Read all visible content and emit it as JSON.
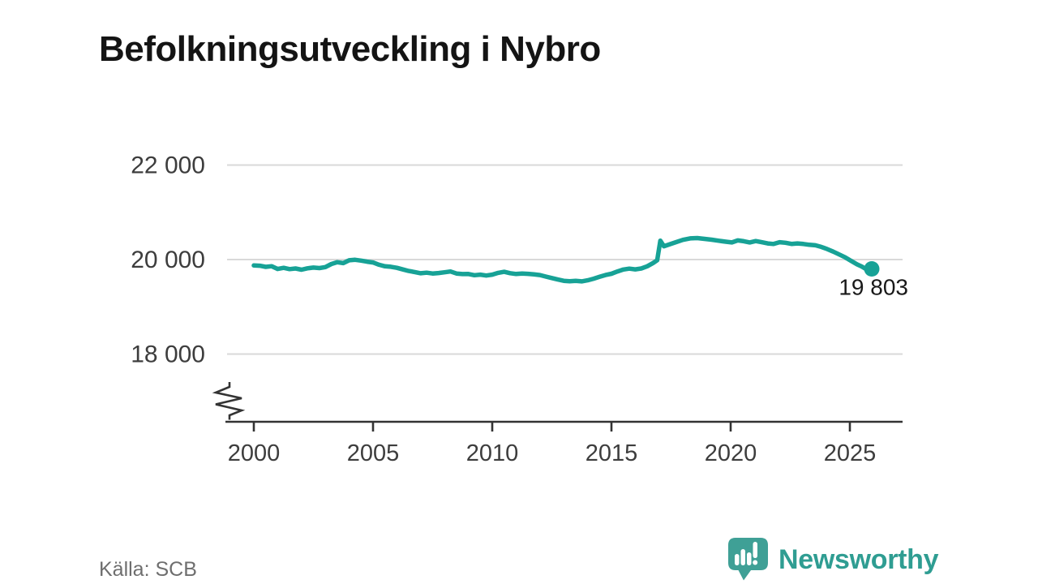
{
  "title": "Befolkningsutveckling i Nybro",
  "footer": {
    "source": "Källa: SCB",
    "brand_name": "Newsworthy"
  },
  "colors": {
    "accent_line": "#17a296",
    "logo_bubble": "#3fa096",
    "logo_text": "#2f9d92",
    "gridline": "#d9d9d9",
    "axis": "#333333",
    "tick_label": "#3d3d3d",
    "annotation": "#191919",
    "source_text": "#6e6e6e",
    "title_text": "#141414",
    "background": "#ffffff"
  },
  "chart_data": {
    "type": "line",
    "title": "Befolkningsutveckling i Nybro",
    "xlabel": "",
    "ylabel": "",
    "legend_position": "none",
    "grid": "horizontal",
    "axis_break_bottom_left": true,
    "x_ticks": [
      2000,
      2005,
      2010,
      2015,
      2020,
      2025
    ],
    "x_range_visible": [
      1998.9,
      2027.2
    ],
    "y_gridlines": [
      {
        "value": 22000,
        "label": "22 000"
      },
      {
        "value": 20000,
        "label": "20 000"
      },
      {
        "value": 18000,
        "label": "18 000"
      }
    ],
    "end_label": "19 803",
    "latest_value": 19803,
    "series": [
      {
        "name": "Befolkning i Nybro",
        "points": [
          [
            2000.0,
            19875
          ],
          [
            2000.25,
            19870
          ],
          [
            2000.5,
            19845
          ],
          [
            2000.75,
            19860
          ],
          [
            2001.0,
            19800
          ],
          [
            2001.25,
            19825
          ],
          [
            2001.5,
            19798
          ],
          [
            2001.75,
            19812
          ],
          [
            2002.0,
            19785
          ],
          [
            2002.25,
            19815
          ],
          [
            2002.5,
            19830
          ],
          [
            2002.75,
            19820
          ],
          [
            2003.0,
            19840
          ],
          [
            2003.25,
            19905
          ],
          [
            2003.5,
            19943
          ],
          [
            2003.75,
            19925
          ],
          [
            2004.0,
            19985
          ],
          [
            2004.25,
            19995
          ],
          [
            2004.5,
            19978
          ],
          [
            2004.75,
            19955
          ],
          [
            2005.0,
            19938
          ],
          [
            2005.25,
            19890
          ],
          [
            2005.5,
            19858
          ],
          [
            2005.75,
            19848
          ],
          [
            2006.0,
            19825
          ],
          [
            2006.25,
            19790
          ],
          [
            2006.5,
            19758
          ],
          [
            2006.75,
            19735
          ],
          [
            2007.0,
            19710
          ],
          [
            2007.25,
            19722
          ],
          [
            2007.5,
            19705
          ],
          [
            2007.75,
            19715
          ],
          [
            2008.0,
            19730
          ],
          [
            2008.25,
            19748
          ],
          [
            2008.5,
            19705
          ],
          [
            2008.75,
            19692
          ],
          [
            2009.0,
            19695
          ],
          [
            2009.25,
            19668
          ],
          [
            2009.5,
            19680
          ],
          [
            2009.75,
            19662
          ],
          [
            2010.0,
            19680
          ],
          [
            2010.25,
            19718
          ],
          [
            2010.5,
            19740
          ],
          [
            2010.75,
            19712
          ],
          [
            2011.0,
            19695
          ],
          [
            2011.25,
            19705
          ],
          [
            2011.5,
            19698
          ],
          [
            2011.75,
            19685
          ],
          [
            2012.0,
            19672
          ],
          [
            2012.25,
            19640
          ],
          [
            2012.5,
            19608
          ],
          [
            2012.75,
            19578
          ],
          [
            2013.0,
            19550
          ],
          [
            2013.25,
            19542
          ],
          [
            2013.5,
            19548
          ],
          [
            2013.75,
            19538
          ],
          [
            2014.0,
            19560
          ],
          [
            2014.25,
            19595
          ],
          [
            2014.5,
            19635
          ],
          [
            2014.75,
            19672
          ],
          [
            2015.0,
            19700
          ],
          [
            2015.25,
            19748
          ],
          [
            2015.5,
            19788
          ],
          [
            2015.75,
            19808
          ],
          [
            2016.0,
            19792
          ],
          [
            2016.25,
            19812
          ],
          [
            2016.5,
            19858
          ],
          [
            2016.75,
            19928
          ],
          [
            2016.92,
            19985
          ],
          [
            2017.05,
            20400
          ],
          [
            2017.2,
            20282
          ],
          [
            2017.45,
            20325
          ],
          [
            2017.7,
            20368
          ],
          [
            2018.0,
            20418
          ],
          [
            2018.3,
            20448
          ],
          [
            2018.6,
            20455
          ],
          [
            2018.9,
            20438
          ],
          [
            2019.2,
            20420
          ],
          [
            2019.5,
            20398
          ],
          [
            2019.8,
            20378
          ],
          [
            2020.05,
            20362
          ],
          [
            2020.3,
            20405
          ],
          [
            2020.55,
            20388
          ],
          [
            2020.8,
            20362
          ],
          [
            2021.05,
            20392
          ],
          [
            2021.3,
            20368
          ],
          [
            2021.55,
            20342
          ],
          [
            2021.8,
            20330
          ],
          [
            2022.05,
            20368
          ],
          [
            2022.3,
            20355
          ],
          [
            2022.55,
            20332
          ],
          [
            2022.8,
            20342
          ],
          [
            2023.05,
            20330
          ],
          [
            2023.3,
            20312
          ],
          [
            2023.55,
            20302
          ],
          [
            2023.8,
            20268
          ],
          [
            2024.05,
            20222
          ],
          [
            2024.3,
            20168
          ],
          [
            2024.55,
            20108
          ],
          [
            2024.8,
            20048
          ],
          [
            2025.05,
            19972
          ],
          [
            2025.3,
            19898
          ],
          [
            2025.5,
            19852
          ],
          [
            2025.7,
            19792
          ],
          [
            2025.85,
            19762
          ],
          [
            2025.92,
            19803
          ]
        ]
      }
    ],
    "source": "Källa: SCB"
  }
}
